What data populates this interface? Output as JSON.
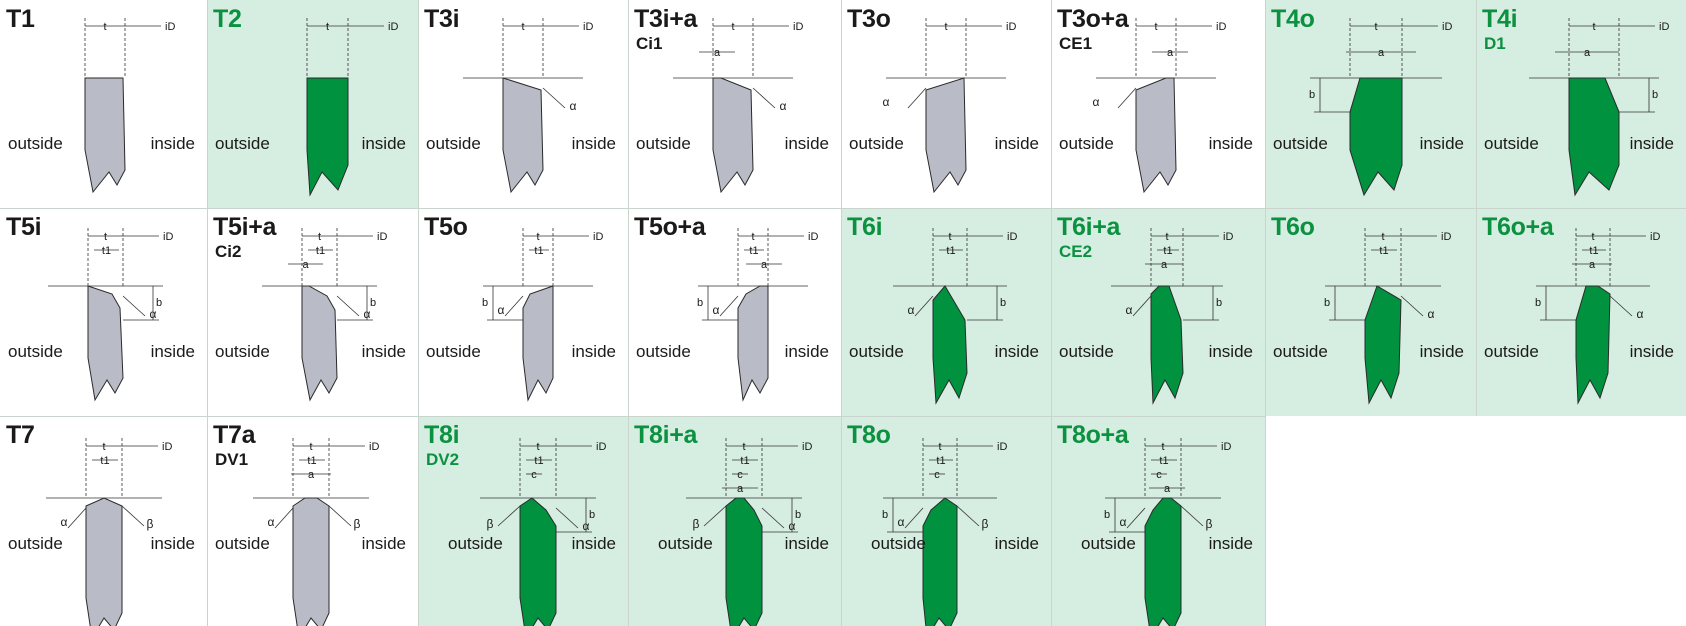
{
  "colors": {
    "highlight_bg": "#d6ede1",
    "green_profile": "#00923f",
    "gray_profile": "#b9bcc6",
    "title_green": "#0b9140"
  },
  "cells": [
    {
      "title": "T1",
      "subtitle": "",
      "outside": "outside",
      "inside": "inside",
      "hl": false,
      "shape": "T1"
    },
    {
      "title": "T2",
      "subtitle": "",
      "outside": "outside",
      "inside": "inside",
      "hl": true,
      "shape": "T2"
    },
    {
      "title": "T3i",
      "subtitle": "",
      "outside": "outside",
      "inside": "inside",
      "hl": false,
      "shape": "T3i"
    },
    {
      "title": "T3i+a",
      "subtitle": "Ci1",
      "outside": "outside",
      "inside": "inside",
      "hl": false,
      "shape": "T3ia"
    },
    {
      "title": "T3o",
      "subtitle": "",
      "outside": "outside",
      "inside": "inside",
      "hl": false,
      "shape": "T3o"
    },
    {
      "title": "T3o+a",
      "subtitle": "CE1",
      "outside": "outside",
      "inside": "inside",
      "hl": false,
      "shape": "T3oa"
    },
    {
      "title": "T4o",
      "subtitle": "",
      "outside": "outside",
      "inside": "inside",
      "hl": true,
      "shape": "T4o"
    },
    {
      "title": "T4i",
      "subtitle": "D1",
      "outside": "outside",
      "inside": "inside",
      "hl": true,
      "shape": "T4i"
    },
    {
      "title": "T5i",
      "subtitle": "",
      "outside": "outside",
      "inside": "inside",
      "hl": false,
      "shape": "T5i"
    },
    {
      "title": "T5i+a",
      "subtitle": "Ci2",
      "outside": "outside",
      "inside": "inside",
      "hl": false,
      "shape": "T5ia"
    },
    {
      "title": "T5o",
      "subtitle": "",
      "outside": "outside",
      "inside": "inside",
      "hl": false,
      "shape": "T5o"
    },
    {
      "title": "T5o+a",
      "subtitle": "",
      "outside": "outside",
      "inside": "inside",
      "hl": false,
      "shape": "T5oa"
    },
    {
      "title": "T6i",
      "subtitle": "",
      "outside": "outside",
      "inside": "inside",
      "hl": true,
      "shape": "T6i"
    },
    {
      "title": "T6i+a",
      "subtitle": "CE2",
      "outside": "outside",
      "inside": "inside",
      "hl": true,
      "shape": "T6ia"
    },
    {
      "title": "T6o",
      "subtitle": "",
      "outside": "outside",
      "inside": "inside",
      "hl": true,
      "shape": "T6o"
    },
    {
      "title": "T6o+a",
      "subtitle": "",
      "outside": "outside",
      "inside": "inside",
      "hl": true,
      "shape": "T6oa"
    },
    {
      "title": "T7",
      "subtitle": "",
      "outside": "outside",
      "inside": "inside",
      "hl": false,
      "shape": "T7"
    },
    {
      "title": "T7a",
      "subtitle": "DV1",
      "outside": "outside",
      "inside": "inside",
      "hl": false,
      "shape": "T7a"
    },
    {
      "title": "T8i",
      "subtitle": "DV2",
      "outside": "outside",
      "inside": "inside",
      "hl": true,
      "shape": "T8i"
    },
    {
      "title": "T8i+a",
      "subtitle": "",
      "outside": "outside",
      "inside": "inside",
      "hl": true,
      "shape": "T8ia"
    },
    {
      "title": "T8o",
      "subtitle": "",
      "outside": "outside",
      "inside": "inside",
      "hl": true,
      "shape": "T8o"
    },
    {
      "title": "T8o+a",
      "subtitle": "",
      "outside": "outside",
      "inside": "inside",
      "hl": true,
      "shape": "T8oa"
    }
  ],
  "dims": {
    "t": "t",
    "t1": "t1",
    "iD": "iD",
    "a": "a",
    "b": "b",
    "c": "c",
    "alpha": "α",
    "beta": "β"
  }
}
